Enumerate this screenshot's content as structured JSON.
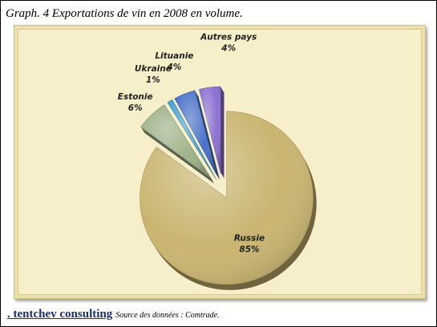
{
  "title": "Graph. 4 Exportations de vin en 2008 en volume.",
  "footer": {
    "brand": ". tentchev consulting",
    "source": "Source des données : Comtrade."
  },
  "chart_data": {
    "type": "pie",
    "exploded": true,
    "three_d": true,
    "title": "Graph. 4 Exportations de vin en 2008 en volume.",
    "slices": [
      {
        "label": "Russie",
        "value": 85,
        "pct_label": "85%",
        "color": "#c9b570"
      },
      {
        "label": "Estonie",
        "value": 6,
        "pct_label": "6%",
        "color": "#9fb28a"
      },
      {
        "label": "Ukraine",
        "value": 1,
        "pct_label": "1%",
        "color": "#4aa3d6"
      },
      {
        "label": "Lituanie",
        "value": 4,
        "pct_label": "4%",
        "color": "#4a72c9"
      },
      {
        "label": "Autres pays",
        "value": 4,
        "pct_label": "4%",
        "color": "#8e72d2"
      }
    ]
  }
}
